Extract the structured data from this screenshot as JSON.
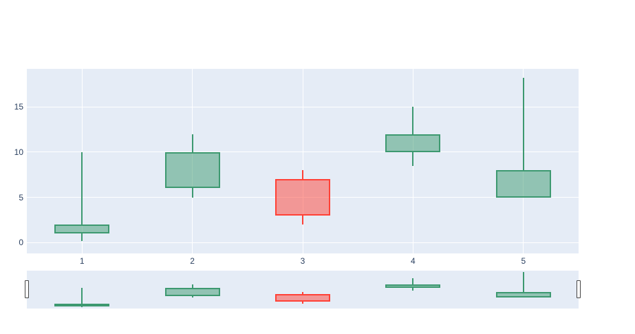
{
  "colors": {
    "paper_bg": "#ffffff",
    "plot_bg": "#e5ecf6",
    "grid": "#ffffff",
    "tick_label": "#2a3f5f",
    "increasing_line": "#3d9970",
    "increasing_fill": "rgba(61,153,112,0.5)",
    "decreasing_line": "#ff4136",
    "decreasing_fill": "rgba(255,65,54,0.5)",
    "rangeslider_handle_fill": "#ffffff",
    "rangeslider_handle_border": "#444444"
  },
  "chart_data": {
    "type": "candlestick",
    "title": "",
    "xlabel": "",
    "ylabel": "",
    "legend": false,
    "grid": true,
    "x": [
      1,
      2,
      3,
      4,
      5
    ],
    "open": [
      1,
      6,
      7,
      10,
      5
    ],
    "high": [
      10,
      12,
      8,
      15,
      18.2
    ],
    "low": [
      0.2,
      5,
      2,
      8.5,
      5
    ],
    "close": [
      2,
      10,
      3,
      12,
      8
    ],
    "directions": [
      "increasing",
      "increasing",
      "decreasing",
      "increasing",
      "increasing"
    ],
    "x_tick_labels": [
      "1",
      "2",
      "3",
      "4",
      "5"
    ],
    "x_tick_values": [
      1,
      2,
      3,
      4,
      5
    ],
    "y_tick_labels": [
      "0",
      "5",
      "10",
      "15"
    ],
    "y_tick_values": [
      0,
      5,
      10,
      15
    ],
    "xlim": [
      0.5,
      5.5
    ],
    "ylim": [
      -1.2,
      19.2
    ],
    "candle_width_fraction": 0.5,
    "rangeslider": {
      "visible": true,
      "range": [
        0.5,
        5.5
      ]
    }
  }
}
